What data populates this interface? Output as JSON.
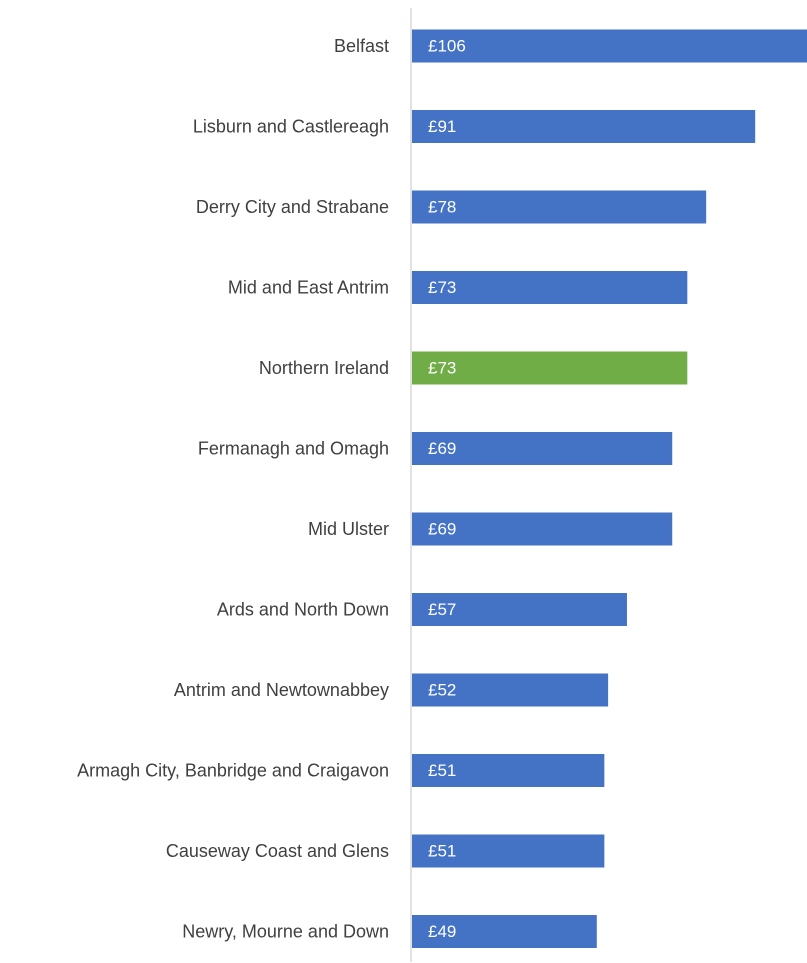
{
  "chart_data": {
    "type": "bar",
    "orientation": "horizontal",
    "categories": [
      "Belfast",
      "Lisburn and Castlereagh",
      "Derry City and Strabane",
      "Mid and East Antrim",
      "Northern Ireland",
      "Fermanagh and Omagh",
      "Mid Ulster",
      "Ards and North Down",
      "Antrim and Newtownabbey",
      "Armagh City, Banbridge and Craigavon",
      "Causeway Coast and Glens",
      "Newry, Mourne and Down"
    ],
    "values": [
      106,
      91,
      78,
      73,
      73,
      69,
      69,
      57,
      52,
      51,
      51,
      49
    ],
    "value_labels": [
      "£106",
      "£91",
      "£78",
      "£73",
      "£73",
      "£69",
      "£69",
      "£57",
      "£52",
      "£51",
      "£51",
      "£49"
    ],
    "bar_colors": [
      "#4472C4",
      "#4472C4",
      "#4472C4",
      "#4472C4",
      "#70AD47",
      "#4472C4",
      "#4472C4",
      "#4472C4",
      "#4472C4",
      "#4472C4",
      "#4472C4",
      "#4472C4"
    ],
    "axis_color": "#D9D9D9",
    "xlim": [
      0,
      105
    ],
    "title": "",
    "xlabel": "",
    "ylabel": "",
    "grid": false,
    "legend": "none"
  }
}
